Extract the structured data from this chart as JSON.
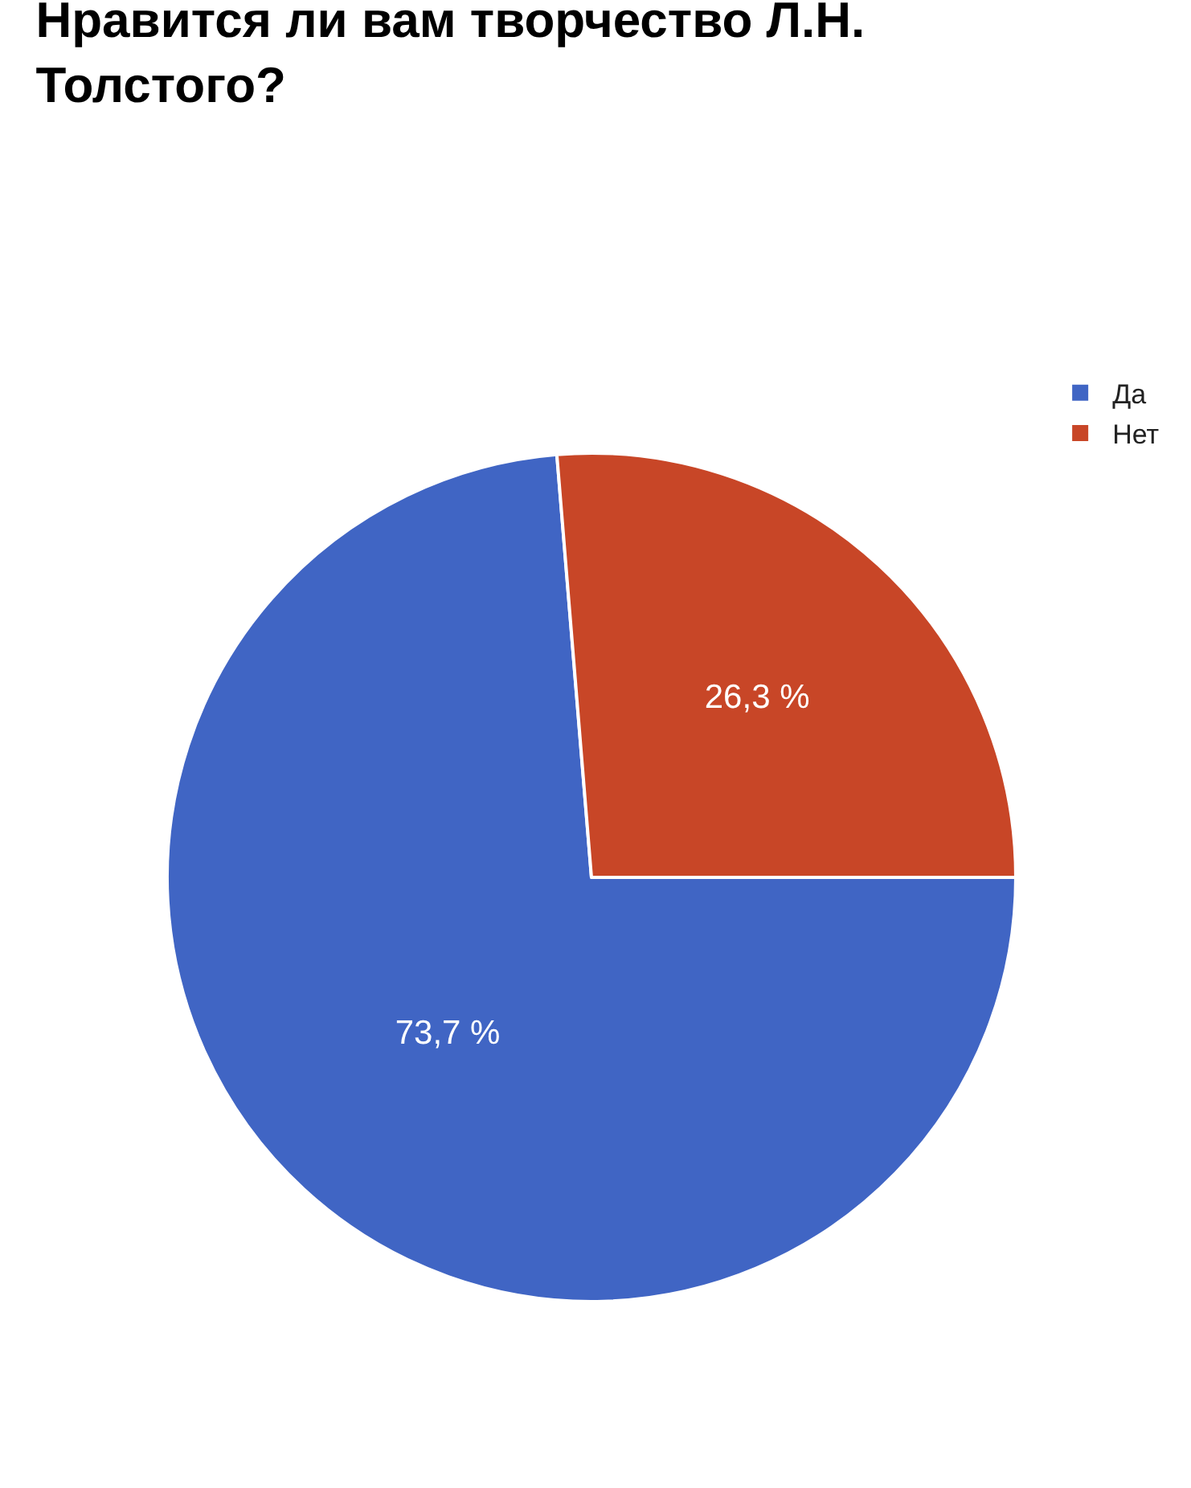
{
  "chart_data": {
    "type": "pie",
    "title": "Нравится ли вам творчество Л.Н. Толстого?",
    "categories": [
      "Да",
      "Нет"
    ],
    "values": [
      73.7,
      26.3
    ],
    "colors": [
      "#4065c4",
      "#c84627"
    ],
    "value_labels": [
      "73,7 %",
      "26,3 %"
    ],
    "legend": "top right"
  }
}
